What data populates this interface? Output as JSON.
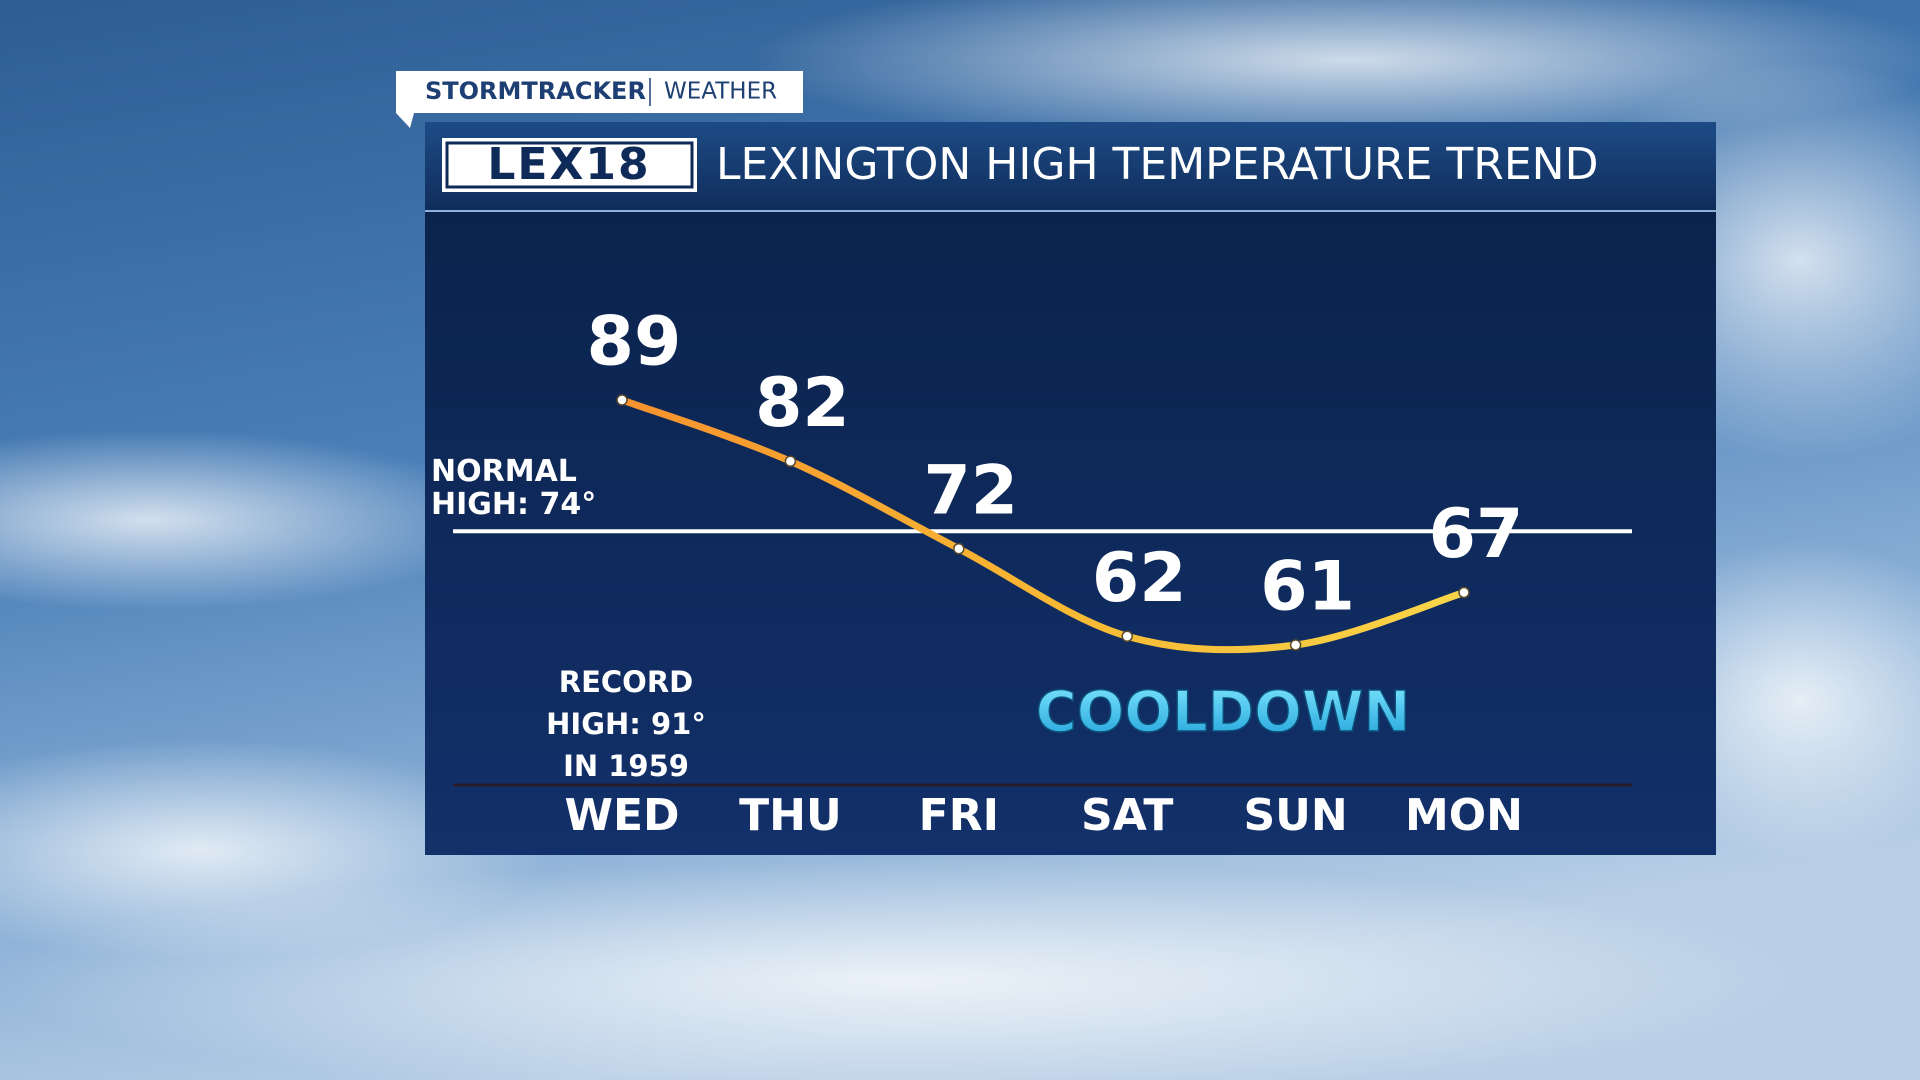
{
  "header": {
    "brand": "STORMTRACKER",
    "section": "WEATHER",
    "logo": "LEX18"
  },
  "chart_data": {
    "type": "line",
    "title": "LEXINGTON HIGH TEMPERATURE TREND",
    "categories": [
      "WED",
      "THU",
      "FRI",
      "SAT",
      "SUN",
      "MON"
    ],
    "series": [
      {
        "name": "High temperature",
        "color": "#f7b733",
        "values": [
          89,
          82,
          72,
          62,
          61,
          67
        ]
      }
    ],
    "normal_high": {
      "value": 74,
      "label_lines": [
        "NORMAL",
        "HIGH: 74°"
      ]
    },
    "annotations": [
      {
        "lines": [
          "RECORD",
          "HIGH: 91°",
          "IN 1959"
        ]
      },
      {
        "lines": [
          "COOLDOWN"
        ]
      }
    ]
  }
}
